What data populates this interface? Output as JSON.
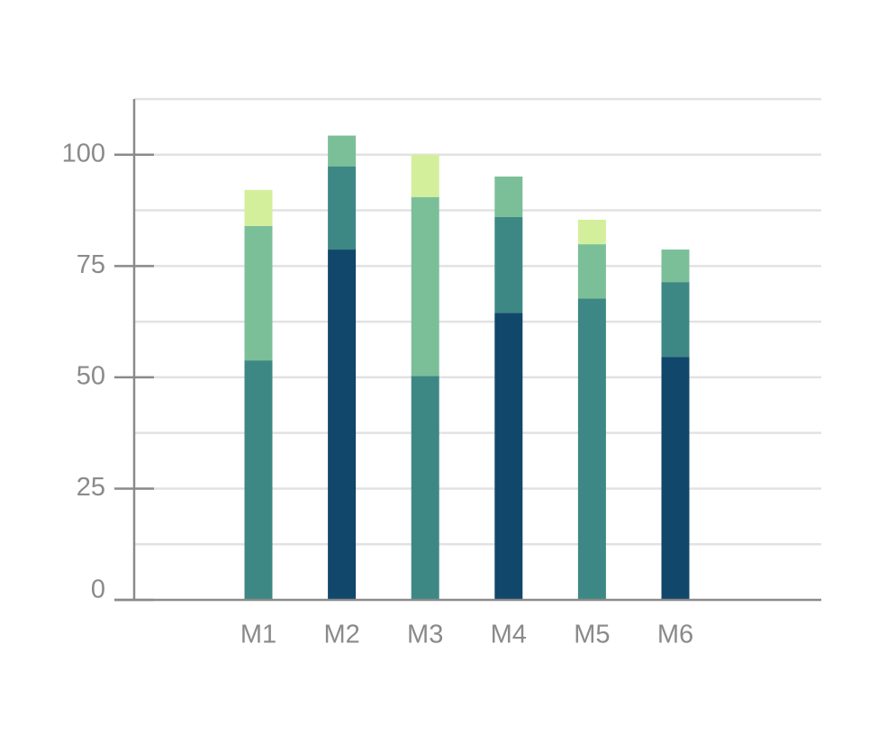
{
  "chart_data": {
    "type": "stacked_bar",
    "categories": [
      "M1",
      "M2",
      "M3",
      "M4",
      "M5",
      "M6"
    ],
    "series": [
      {
        "color": "#11476b",
        "values": [
          0,
          78.7,
          0,
          64.5,
          0,
          54.6
        ]
      },
      {
        "color": "#3d8885",
        "values": [
          53.8,
          18.7,
          50.3,
          21.5,
          67.7,
          16.8
        ]
      },
      {
        "color": "#7bbf98",
        "values": [
          30.2,
          6.9,
          40.2,
          9.1,
          12.2,
          7.3
        ]
      },
      {
        "color": "#d4ef9b",
        "values": [
          8.1,
          0,
          9.5,
          0,
          5.5,
          0
        ]
      }
    ],
    "ylim": [
      0,
      112.5
    ],
    "yticks": [
      0,
      25,
      50,
      75,
      100
    ],
    "minor_yticks": [
      12.5,
      37.5,
      62.5,
      87.5,
      112.5
    ],
    "grid": true
  }
}
